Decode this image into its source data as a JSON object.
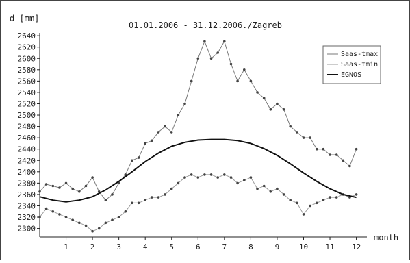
{
  "chart_data": {
    "type": "line",
    "title": "01.01.2006 - 31.12.2006./Zagreb",
    "ylabel": "d [mm]",
    "xlabel": "month",
    "xlim": [
      0,
      12.4
    ],
    "ylim": [
      2285,
      2645
    ],
    "x_ticks": [
      1,
      2,
      3,
      4,
      5,
      6,
      7,
      8,
      9,
      10,
      11,
      12
    ],
    "y_ticks": [
      2300,
      2320,
      2340,
      2360,
      2380,
      2400,
      2420,
      2440,
      2460,
      2480,
      2500,
      2520,
      2540,
      2560,
      2580,
      2600,
      2620,
      2640
    ],
    "legend_position": "top-right",
    "grid": false,
    "series": [
      {
        "name": "Saas-tmax",
        "color": "#7a7a7a",
        "x": [
          0.0,
          0.25,
          0.5,
          0.75,
          1.0,
          1.25,
          1.5,
          1.75,
          2.0,
          2.25,
          2.5,
          2.75,
          3.0,
          3.25,
          3.5,
          3.75,
          4.0,
          4.25,
          4.5,
          4.75,
          5.0,
          5.25,
          5.5,
          5.75,
          6.0,
          6.25,
          6.5,
          6.75,
          7.0,
          7.25,
          7.5,
          7.75,
          8.0,
          8.25,
          8.5,
          8.75,
          9.0,
          9.25,
          9.5,
          9.75,
          10.0,
          10.25,
          10.5,
          10.75,
          11.0,
          11.25,
          11.5,
          11.75,
          12.0
        ],
        "y": [
          2365,
          2378,
          2375,
          2372,
          2380,
          2370,
          2365,
          2375,
          2390,
          2365,
          2350,
          2360,
          2380,
          2395,
          2420,
          2425,
          2450,
          2455,
          2470,
          2480,
          2470,
          2500,
          2520,
          2560,
          2600,
          2630,
          2600,
          2610,
          2630,
          2590,
          2560,
          2580,
          2560,
          2540,
          2530,
          2510,
          2520,
          2510,
          2480,
          2470,
          2460,
          2460,
          2440,
          2440,
          2430,
          2430,
          2420,
          2410,
          2440
        ]
      },
      {
        "name": "Saas-tmin",
        "color": "#9a9a9a",
        "x": [
          0.0,
          0.25,
          0.5,
          0.75,
          1.0,
          1.25,
          1.5,
          1.75,
          2.0,
          2.25,
          2.5,
          2.75,
          3.0,
          3.25,
          3.5,
          3.75,
          4.0,
          4.25,
          4.5,
          4.75,
          5.0,
          5.25,
          5.5,
          5.75,
          6.0,
          6.25,
          6.5,
          6.75,
          7.0,
          7.25,
          7.5,
          7.75,
          8.0,
          8.25,
          8.5,
          8.75,
          9.0,
          9.25,
          9.5,
          9.75,
          10.0,
          10.25,
          10.5,
          10.75,
          11.0,
          11.25,
          11.5,
          11.75,
          12.0
        ],
        "y": [
          2320,
          2335,
          2330,
          2325,
          2320,
          2315,
          2310,
          2305,
          2295,
          2300,
          2310,
          2315,
          2320,
          2330,
          2345,
          2345,
          2350,
          2355,
          2355,
          2360,
          2370,
          2380,
          2390,
          2395,
          2390,
          2395,
          2395,
          2390,
          2395,
          2390,
          2380,
          2385,
          2390,
          2370,
          2375,
          2365,
          2370,
          2360,
          2350,
          2345,
          2325,
          2340,
          2345,
          2350,
          2355,
          2355,
          2360,
          2355,
          2360
        ]
      },
      {
        "name": "EGNOS",
        "color": "#111111",
        "x": [
          0.0,
          0.5,
          1.0,
          1.5,
          2.0,
          2.5,
          3.0,
          3.5,
          4.0,
          4.5,
          5.0,
          5.5,
          6.0,
          6.5,
          7.0,
          7.5,
          8.0,
          8.5,
          9.0,
          9.5,
          10.0,
          10.5,
          11.0,
          11.5,
          12.0
        ],
        "y": [
          2356,
          2350,
          2347,
          2350,
          2356,
          2368,
          2383,
          2400,
          2418,
          2433,
          2445,
          2452,
          2456,
          2457,
          2457,
          2455,
          2450,
          2441,
          2429,
          2414,
          2398,
          2383,
          2370,
          2360,
          2355
        ]
      }
    ]
  }
}
